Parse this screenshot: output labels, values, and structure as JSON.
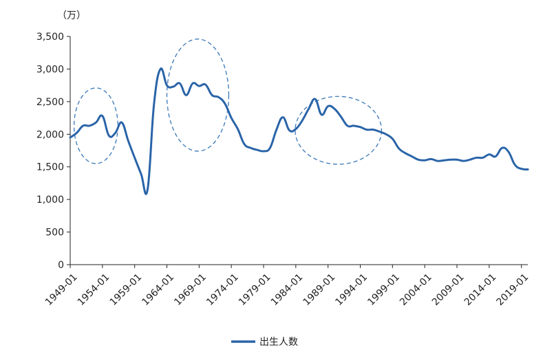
{
  "colors": {
    "series": "#2a64a8",
    "highlight": "#3a78b8",
    "axis": "#222222",
    "background": "#ffffff"
  },
  "chart_data": {
    "type": "line",
    "title": "",
    "unit": "（万）",
    "xlabel": "",
    "ylabel": "",
    "ylim": [
      0,
      3500
    ],
    "yticks": [
      0,
      500,
      1000,
      1500,
      2000,
      2500,
      3000,
      3500
    ],
    "ytick_labels": [
      "0",
      "500",
      "1,000",
      "1,500",
      "2,000",
      "2,500",
      "3,000",
      "3,500"
    ],
    "xlim": [
      1949,
      2020
    ],
    "xticks": [
      1949,
      1954,
      1959,
      1964,
      1969,
      1974,
      1979,
      1984,
      1989,
      1994,
      1999,
      2004,
      2009,
      2014,
      2019
    ],
    "xtick_labels": [
      "1949-01",
      "1954-01",
      "1959-01",
      "1964-01",
      "1969-01",
      "1974-01",
      "1979-01",
      "1984-01",
      "1989-01",
      "1994-01",
      "1999-01",
      "2004-01",
      "2009-01",
      "2014-01",
      "2019-01"
    ],
    "grid": false,
    "legend": "bottom",
    "series": [
      {
        "name": "出生人数",
        "x": [
          1949,
          1950,
          1951,
          1952,
          1953,
          1954,
          1955,
          1956,
          1957,
          1958,
          1959,
          1960,
          1961,
          1962,
          1963,
          1964,
          1965,
          1966,
          1967,
          1968,
          1969,
          1970,
          1971,
          1972,
          1973,
          1974,
          1975,
          1976,
          1977,
          1978,
          1979,
          1980,
          1981,
          1982,
          1983,
          1984,
          1985,
          1986,
          1987,
          1988,
          1989,
          1990,
          1991,
          1992,
          1993,
          1994,
          1995,
          1996,
          1997,
          1998,
          1999,
          2000,
          2001,
          2002,
          2003,
          2004,
          2005,
          2006,
          2007,
          2008,
          2009,
          2010,
          2011,
          2012,
          2013,
          2014,
          2015,
          2016,
          2017,
          2018,
          2019,
          2020
        ],
        "values": [
          1950,
          2020,
          2130,
          2130,
          2180,
          2280,
          1980,
          2020,
          2180,
          1900,
          1640,
          1390,
          1150,
          2460,
          3000,
          2750,
          2730,
          2780,
          2600,
          2780,
          2740,
          2760,
          2600,
          2570,
          2470,
          2250,
          2080,
          1850,
          1790,
          1760,
          1740,
          1790,
          2070,
          2260,
          2060,
          2080,
          2210,
          2390,
          2540,
          2300,
          2430,
          2390,
          2270,
          2130,
          2130,
          2110,
          2070,
          2070,
          2040,
          2000,
          1930,
          1780,
          1710,
          1660,
          1610,
          1600,
          1620,
          1590,
          1600,
          1610,
          1610,
          1590,
          1610,
          1640,
          1640,
          1690,
          1660,
          1790,
          1730,
          1530,
          1470,
          1460
        ]
      }
    ],
    "highlights": [
      {
        "cx": 1953.0,
        "cy": 2130,
        "rx": 3.4,
        "ry": 580
      },
      {
        "cx": 1968.8,
        "cy": 2600,
        "rx": 4.8,
        "ry": 860
      },
      {
        "cx": 1990.6,
        "cy": 2060,
        "rx": 6.7,
        "ry": 520
      }
    ]
  }
}
